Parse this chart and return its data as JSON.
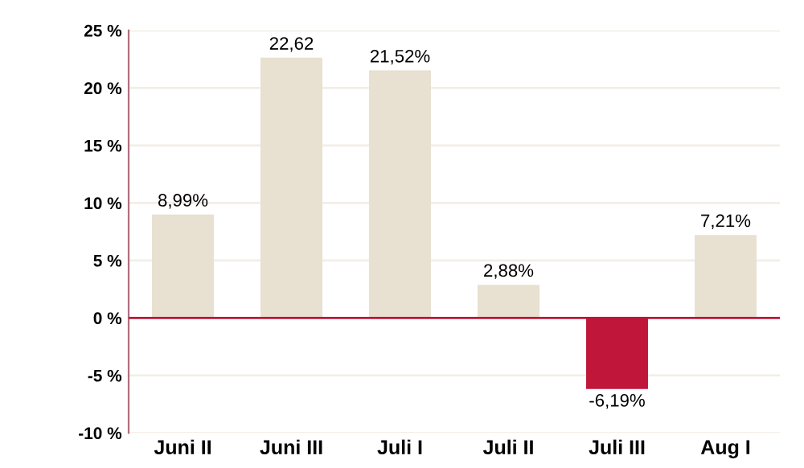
{
  "chart_data": {
    "type": "bar",
    "categories": [
      "Juni II",
      "Juni III",
      "Juli I",
      "Juli II",
      "Juli III",
      "Aug I"
    ],
    "values": [
      8.99,
      22.62,
      21.52,
      2.88,
      -6.19,
      7.21
    ],
    "colors": [
      "#e8e0d0",
      "#e8e0d0",
      "#e8e0d0",
      "#e8e0d0",
      "#c0163a",
      "#e8e0d0"
    ],
    "value_labels": [
      "8,99%",
      "22,62",
      "21,52%",
      "2,88%",
      "-6,19%",
      "7,21%"
    ],
    "ylim": [
      -10,
      25
    ],
    "yticks": [
      {
        "value": -10,
        "label": "-10 %"
      },
      {
        "value": -5,
        "label": "-5 %"
      },
      {
        "value": 0,
        "label": "0 %"
      },
      {
        "value": 5,
        "label": "5 %"
      },
      {
        "value": 10,
        "label": "10 %"
      },
      {
        "value": 15,
        "label": "15 %"
      },
      {
        "value": 20,
        "label": "20 %"
      },
      {
        "value": 25,
        "label": "25 %"
      }
    ],
    "ref_lines": [
      {
        "axis": "y",
        "value": 0,
        "label": null,
        "color": "#c0163a"
      }
    ],
    "grid": "y",
    "legend": false
  }
}
